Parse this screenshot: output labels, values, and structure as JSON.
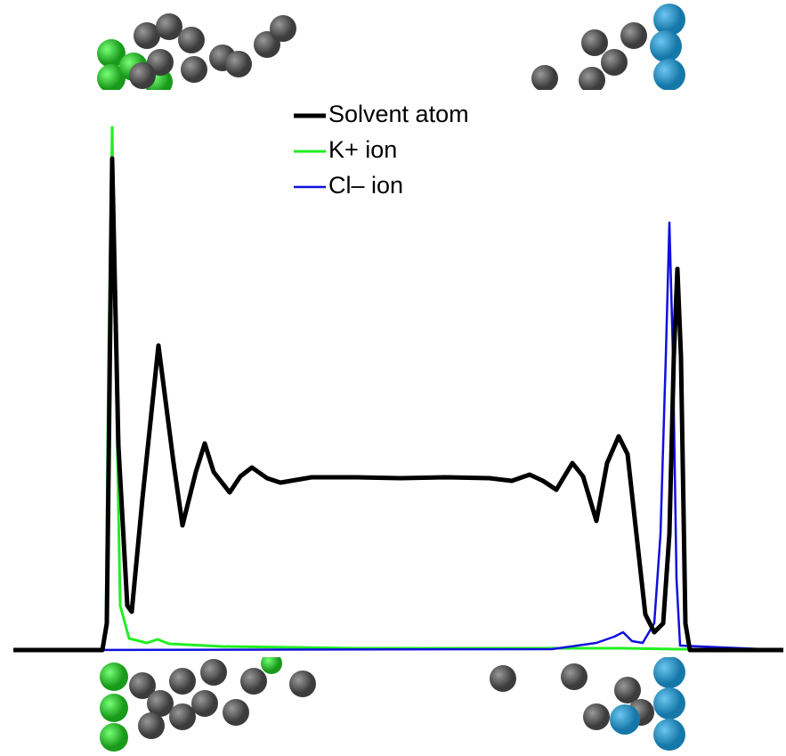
{
  "chart_data": {
    "type": "line",
    "xlim": [
      15,
      880
    ],
    "ylim": [
      0,
      616
    ],
    "legend": "top-center",
    "series": [
      {
        "name": "Solvent atom",
        "color": "#000000",
        "width": 5,
        "x": [
          15,
          115,
          120,
          126,
          133,
          143,
          148,
          160,
          178,
          195,
          205,
          220,
          230,
          240,
          258,
          270,
          283,
          300,
          315,
          350,
          400,
          450,
          500,
          550,
          575,
          595,
          610,
          625,
          643,
          655,
          670,
          682,
          695,
          705,
          715,
          725,
          735,
          745,
          752,
          757,
          761,
          765,
          770,
          775,
          880
        ],
        "values": [
          0,
          0,
          30,
          552,
          230,
          50,
          43,
          170,
          342,
          210,
          140,
          200,
          232,
          200,
          177,
          195,
          205,
          193,
          188,
          194,
          194,
          193,
          194,
          193,
          190,
          197,
          190,
          180,
          210,
          195,
          145,
          210,
          240,
          220,
          130,
          40,
          20,
          30,
          130,
          330,
          428,
          330,
          30,
          0,
          0
        ]
      },
      {
        "name": "K+ ion",
        "color": "#22ee22",
        "width": 3,
        "x": [
          15,
          115,
          119,
          122,
          126,
          130,
          135,
          145,
          165,
          177,
          190,
          250,
          400,
          700,
          760,
          880
        ],
        "values": [
          0,
          0,
          30,
          330,
          587,
          330,
          50,
          13,
          8,
          12,
          7,
          4,
          2,
          2,
          1,
          0
        ]
      },
      {
        "name": "Cl– ion",
        "color": "#1010dd",
        "width": 2.5,
        "x": [
          15,
          620,
          670,
          690,
          700,
          710,
          722,
          735,
          742,
          748,
          752,
          756,
          760,
          764,
          880
        ],
        "values": [
          0,
          1,
          8,
          15,
          20,
          10,
          8,
          30,
          130,
          330,
          480,
          330,
          80,
          5,
          0
        ]
      }
    ]
  }
}
